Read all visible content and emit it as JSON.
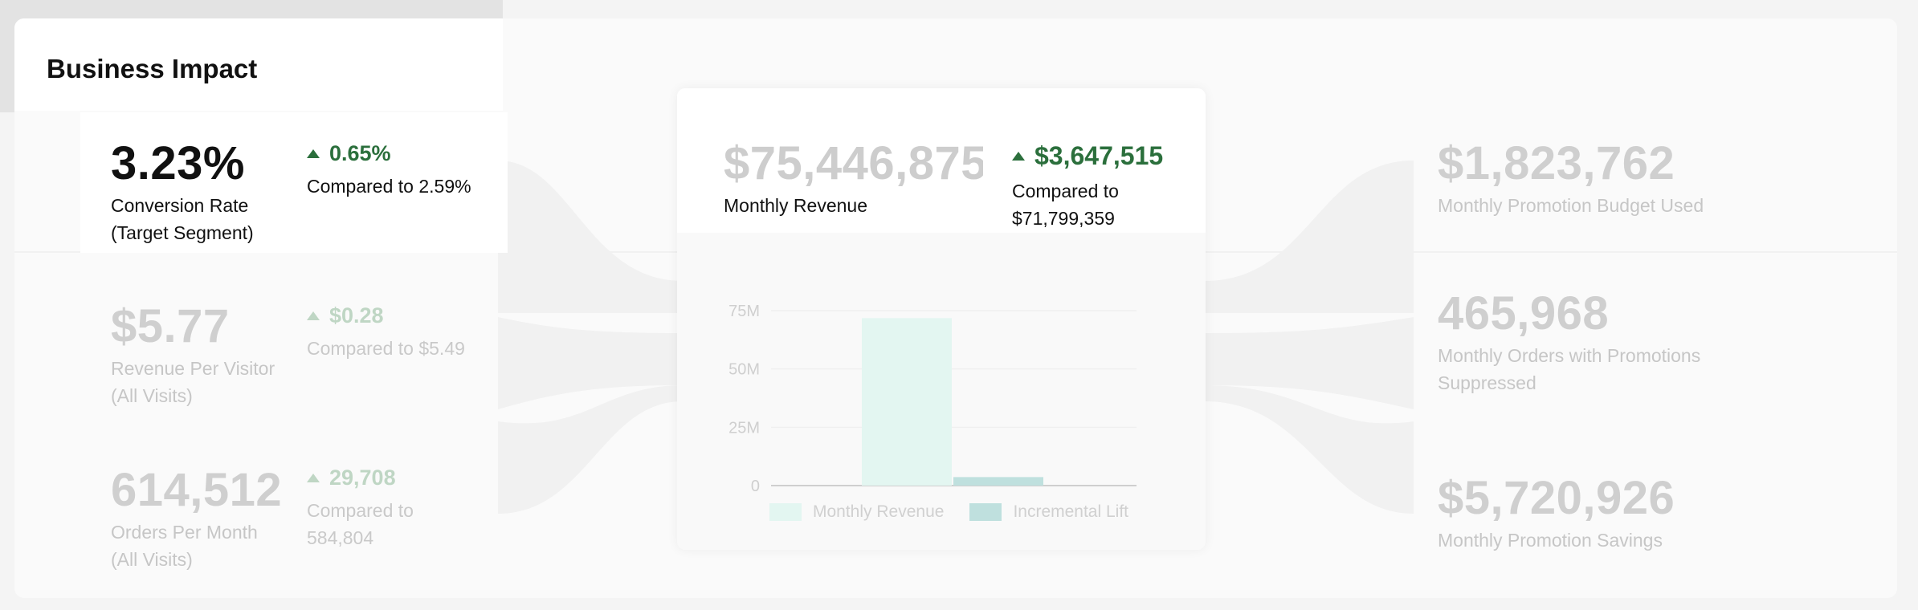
{
  "card": {
    "title": "Business Impact"
  },
  "left_kpis": [
    {
      "value": "3.23%",
      "label_line1": "Conversion Rate",
      "label_line2": "(Target Segment)",
      "delta": "0.65%",
      "compare_line1": "Compared to 2.59%",
      "compare_line2": ""
    },
    {
      "value": "$5.77",
      "label_line1": "Revenue Per Visitor",
      "label_line2": "(All Visits)",
      "delta": "$0.28",
      "compare_line1": "Compared to $5.49",
      "compare_line2": ""
    },
    {
      "value": "614,512",
      "label_line1": "Orders Per Month",
      "label_line2": "(All Visits)",
      "delta": "29,708",
      "compare_line1": "Compared to",
      "compare_line2": "584,804"
    }
  ],
  "center": {
    "value": "$75,446,875",
    "label": "Monthly Revenue",
    "delta": "$3,647,515",
    "compare_line1": "Compared to",
    "compare_line2": "$71,799,359"
  },
  "right_kpis": [
    {
      "value": "$1,823,762",
      "label_line1": "Monthly Promotion Budget Used",
      "label_line2": ""
    },
    {
      "value": "465,968",
      "label_line1": "Monthly Orders with Promotions",
      "label_line2": "Suppressed"
    },
    {
      "value": "$5,720,926",
      "label_line1": "Monthly Promotion Savings",
      "label_line2": ""
    }
  ],
  "colors": {
    "delta_green": "#2b6f3c",
    "bar_revenue": "#e3f6f1",
    "bar_lift": "#bfe0de"
  },
  "icons": {
    "delta": "triangle-up-icon"
  },
  "chart_data": {
    "type": "bar",
    "categories": [
      "Monthly Revenue",
      "Incremental Lift"
    ],
    "values": [
      71799359,
      3647515
    ],
    "y_ticks": [
      0,
      25000000,
      50000000,
      75000000
    ],
    "y_tick_labels": [
      "0",
      "25M",
      "50M",
      "75M"
    ],
    "ylim": [
      0,
      75000000
    ],
    "grid": true,
    "legend_position": "bottom",
    "legend": [
      "Monthly Revenue",
      "Incremental Lift"
    ]
  }
}
